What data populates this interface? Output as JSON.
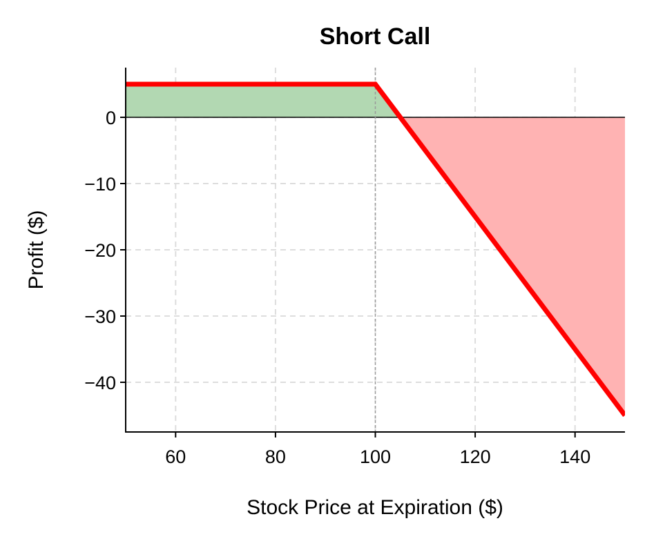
{
  "chart_data": {
    "type": "line",
    "title": "Short Call",
    "xlabel": "Stock Price at Expiration ($)",
    "ylabel": "Profit ($)",
    "xlim": [
      50,
      150
    ],
    "ylim": [
      -47.5,
      7.5
    ],
    "x_ticks": [
      60,
      80,
      100,
      120,
      140
    ],
    "y_ticks": [
      0,
      -10,
      -20,
      -30,
      -40
    ],
    "grid": true,
    "strike": 100,
    "premium": 5,
    "break_even": 105,
    "series": [
      {
        "x": [
          50,
          100,
          105,
          150
        ],
        "y": [
          5,
          5,
          0,
          -45
        ],
        "color": "#ff0000"
      }
    ],
    "colors": {
      "profit_fill": "#b2d8b2",
      "loss_fill": "#ffb3b3",
      "payoff_line": "#ff0000",
      "grid": "#dddddd",
      "strike_line": "#999999"
    }
  }
}
